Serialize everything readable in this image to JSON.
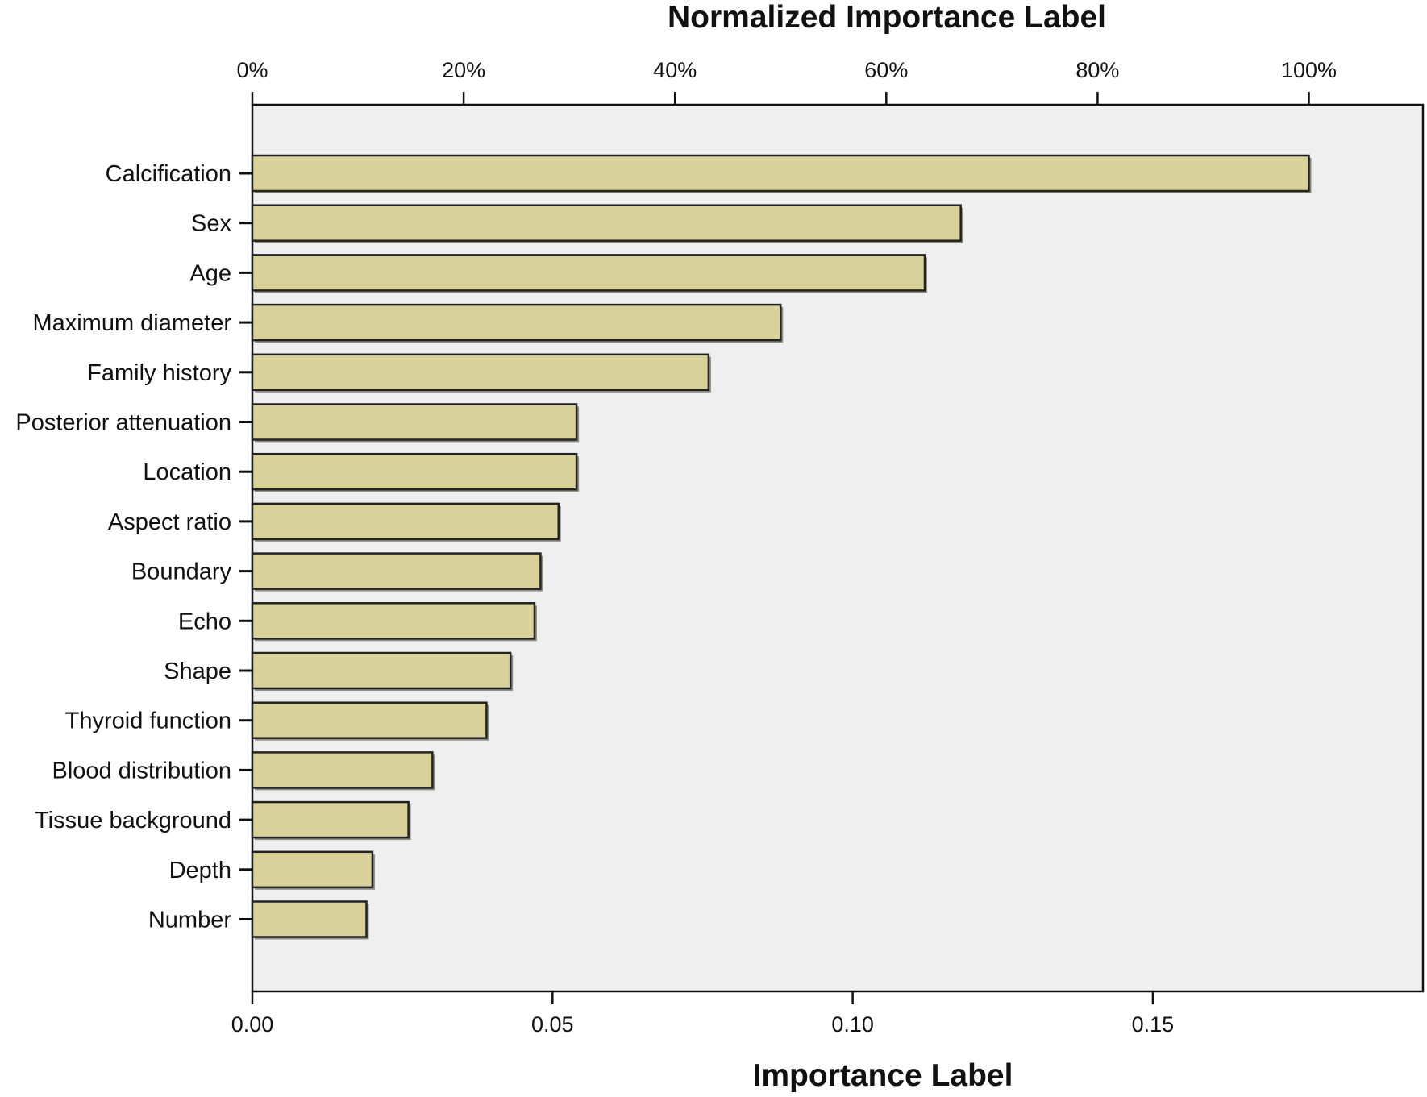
{
  "chart_data": {
    "type": "bar",
    "orientation": "horizontal",
    "title": "",
    "top_axis": {
      "label": "Normalized Importance Label",
      "ticks": [
        "0%",
        "20%",
        "40%",
        "60%",
        "80%",
        "100%"
      ],
      "tick_values": [
        0,
        20,
        40,
        60,
        80,
        100
      ]
    },
    "bottom_axis": {
      "label": "Importance Label",
      "ticks": [
        "0.00",
        "0.05",
        "0.10",
        "0.15"
      ],
      "tick_values": [
        0,
        0.05,
        0.1,
        0.15
      ],
      "xlim": [
        0,
        0.195
      ]
    },
    "categories": [
      "Calcification",
      "Sex",
      "Age",
      "Maximum diameter",
      "Family history",
      "Posterior attenuation",
      "Location",
      "Aspect ratio",
      "Boundary",
      "Echo",
      "Shape",
      "Thyroid function",
      "Blood distribution",
      "Tissue background",
      "Depth",
      "Number"
    ],
    "values": [
      0.176,
      0.118,
      0.112,
      0.088,
      0.076,
      0.054,
      0.054,
      0.051,
      0.048,
      0.047,
      0.043,
      0.039,
      0.03,
      0.026,
      0.02,
      0.019
    ],
    "grid": false,
    "legend": "none",
    "colors": {
      "bar_fill": "#d8d19a",
      "bar_stroke": "#222222",
      "plot_background": "#efefef",
      "axis": "#111111"
    }
  }
}
